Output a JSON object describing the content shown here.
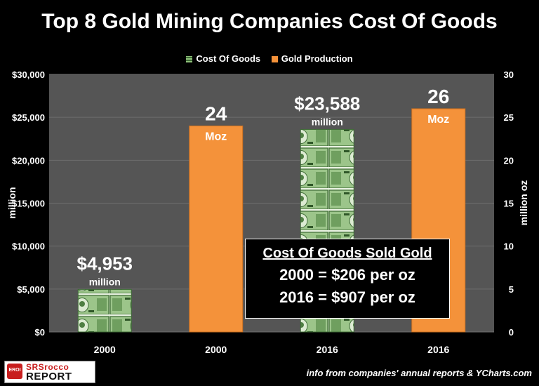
{
  "chart_data": {
    "type": "bar",
    "title": "Top 8 Gold Mining Companies Cost Of Goods",
    "legend": [
      "Cost Of Goods",
      "Gold Production"
    ],
    "legend_position": "top",
    "ylabel_left": "million",
    "ylabel_right": "million oz",
    "ylim_left": [
      0,
      30000
    ],
    "ylim_right": [
      0,
      30
    ],
    "yticks_left": [
      "$0",
      "$5,000",
      "$10,000",
      "$15,000",
      "$20,000",
      "$25,000",
      "$30,000"
    ],
    "yticks_right": [
      "0",
      "5",
      "10",
      "15",
      "20",
      "25",
      "30"
    ],
    "categories": [
      "2000",
      "2000",
      "2016",
      "2016"
    ],
    "grid": true,
    "bars": [
      {
        "category": "2000",
        "series": "Cost Of Goods",
        "value": 4953,
        "axis": "left",
        "label_value": "$4,953",
        "label_unit": "million",
        "label_inside": false
      },
      {
        "category": "2000",
        "series": "Gold Production",
        "value": 24,
        "axis": "right",
        "label_value": "24",
        "label_unit": "Moz",
        "label_inside": true
      },
      {
        "category": "2016",
        "series": "Cost Of Goods",
        "value": 23588,
        "axis": "left",
        "label_value": "$23,588",
        "label_unit": "million",
        "label_inside": false
      },
      {
        "category": "2016",
        "series": "Gold Production",
        "value": 26,
        "axis": "right",
        "label_value": "26",
        "label_unit": "Moz",
        "label_inside": true
      }
    ],
    "colors": {
      "cost_of_goods": "#5d8f4c",
      "gold_production": "#f4923a",
      "plot_bg": "#555555",
      "grid": "#6e6e6e"
    }
  },
  "annotation_box": {
    "title": "Cost Of Goods Sold Gold",
    "line1": "2000 = $206 per oz",
    "line2": "2016 = $907 per oz"
  },
  "footer": {
    "credit": "info from companies' annual reports & YCharts.com",
    "logo_line1": "SRSrocco",
    "logo_line2": "REPORT",
    "logo_emblem": "EROI"
  }
}
